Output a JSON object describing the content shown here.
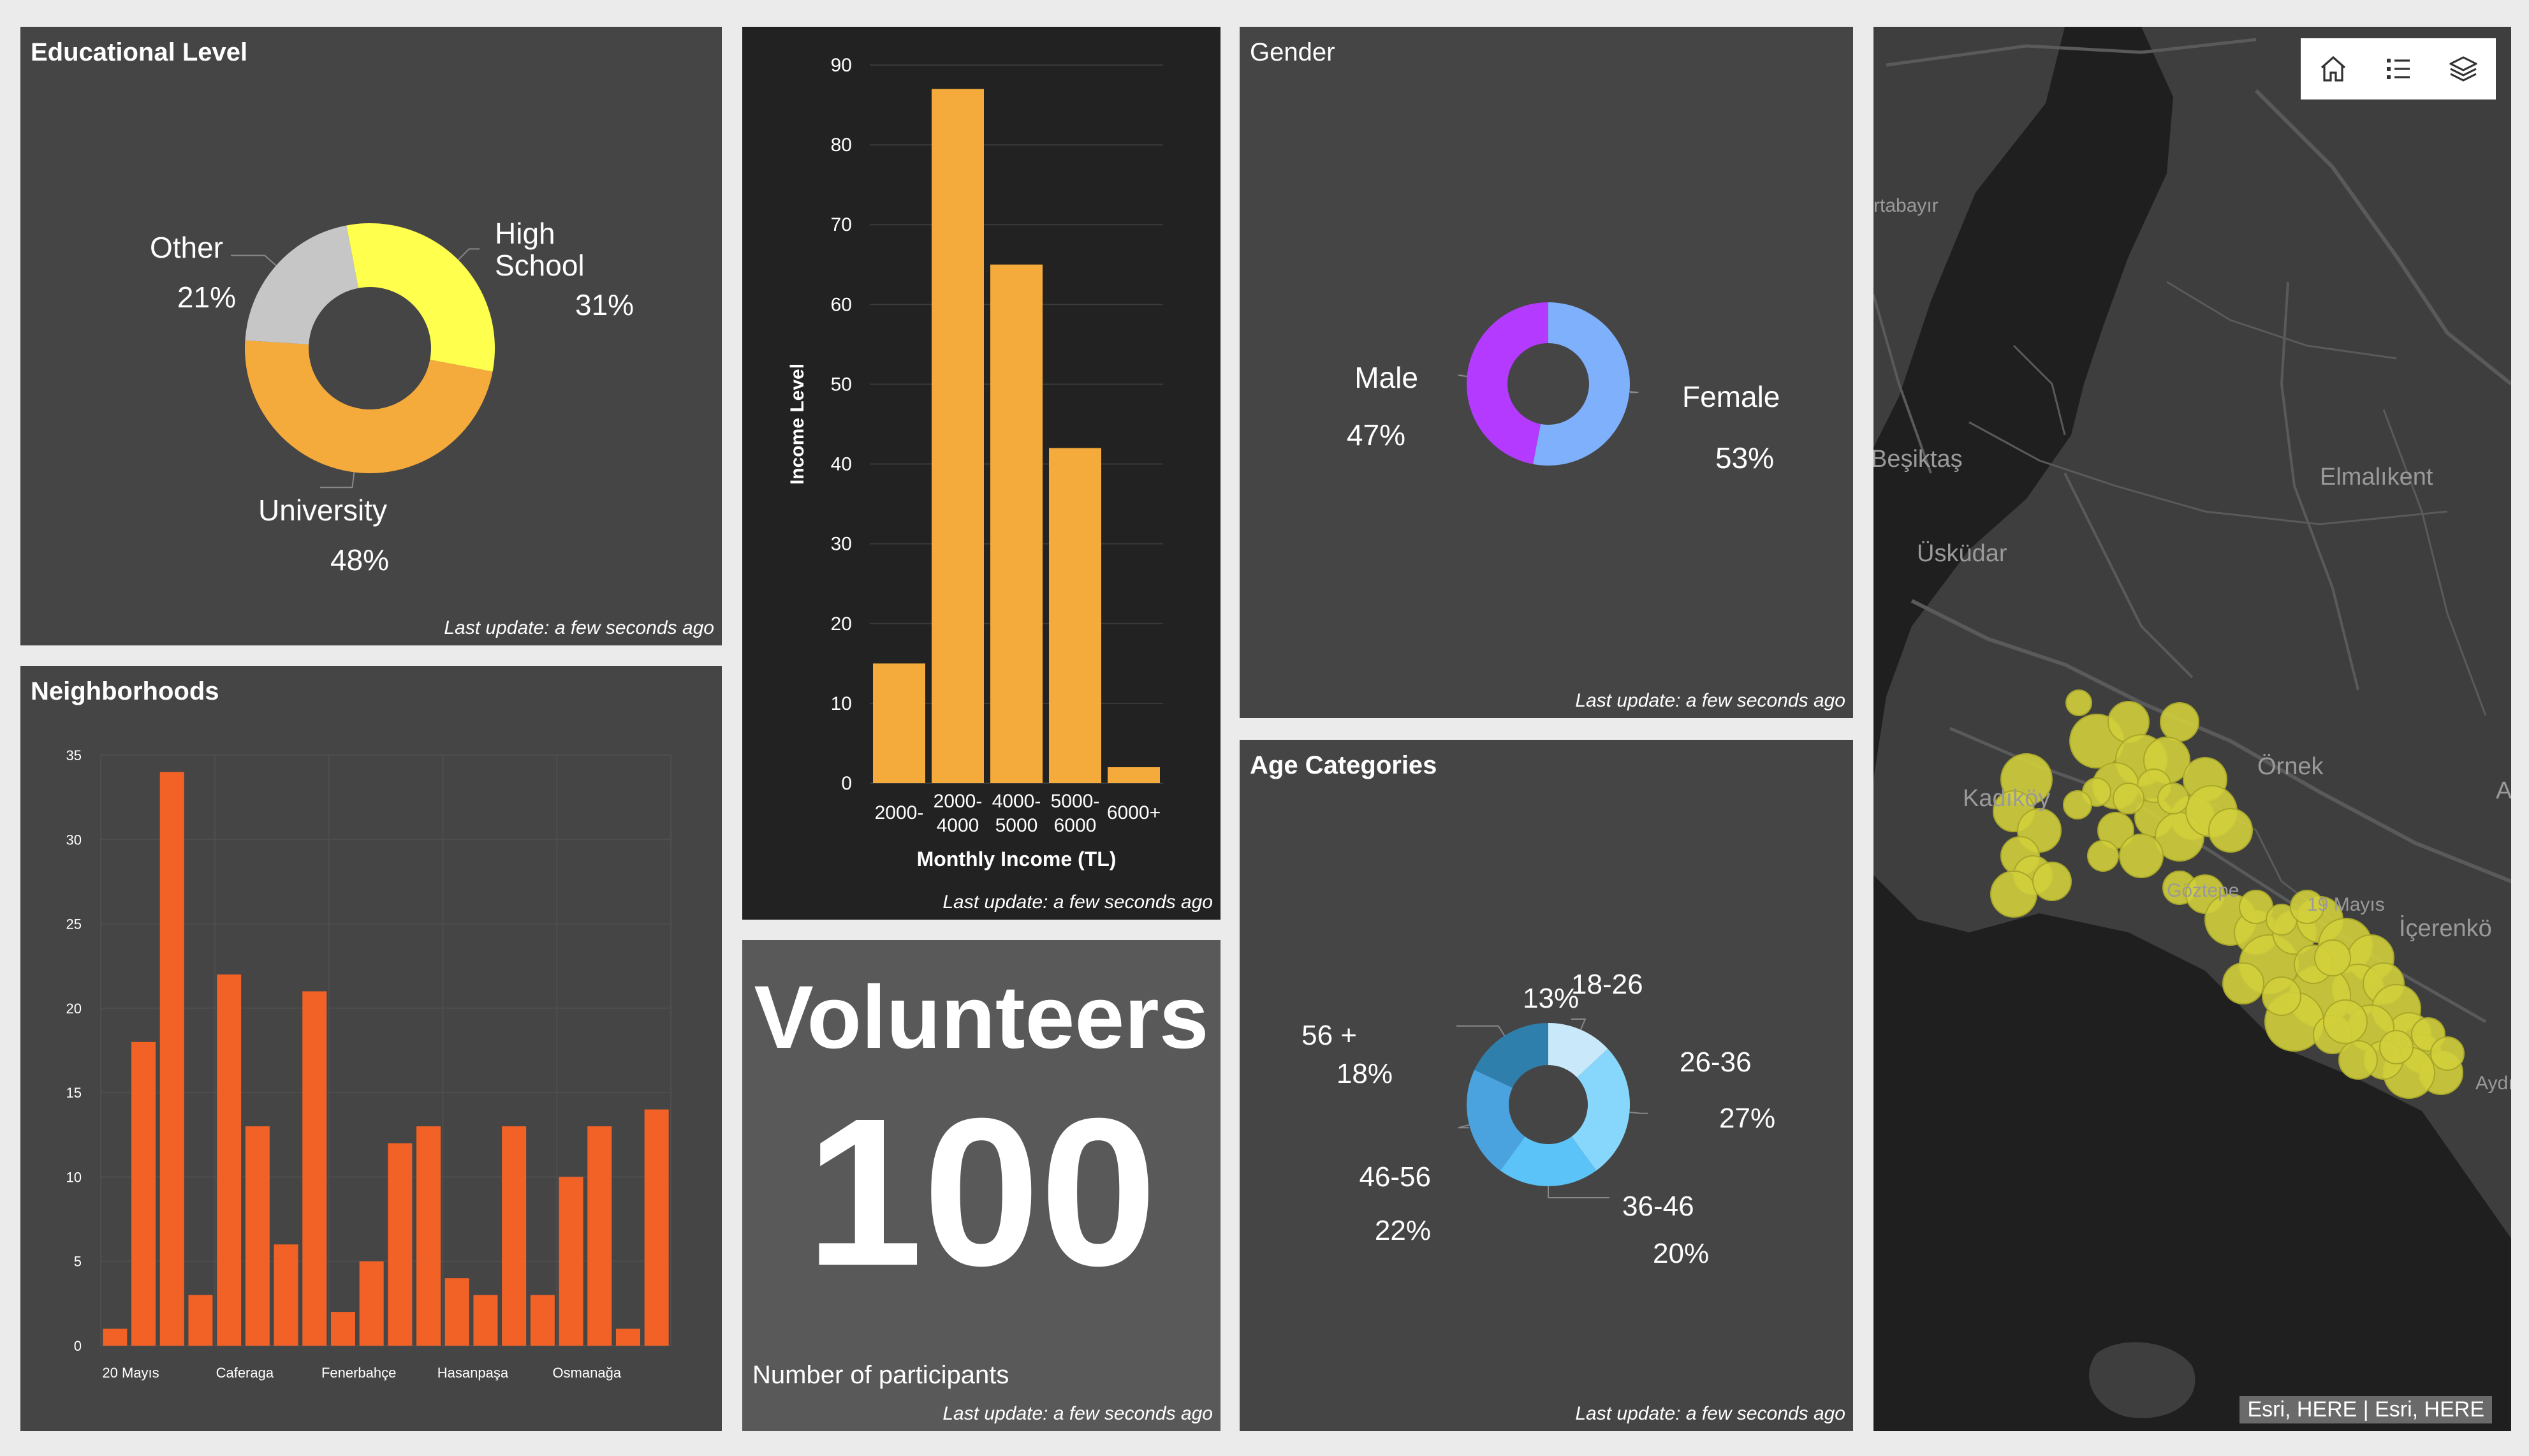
{
  "educational": {
    "title": "Educational Level",
    "footer": "Last update: a few seconds ago",
    "slices": [
      {
        "label": "High School",
        "label_lines": [
          "High",
          "School"
        ],
        "pct_text": "31%",
        "value": 31,
        "color": "#ffff4d"
      },
      {
        "label": "University",
        "label_lines": [
          "University"
        ],
        "pct_text": "48%",
        "value": 48,
        "color": "#f5ab3c"
      },
      {
        "label": "Other",
        "label_lines": [
          "Other"
        ],
        "pct_text": "21%",
        "value": 21,
        "color": "#c6c6c6"
      }
    ]
  },
  "income": {
    "footer": "Last update: a few seconds ago",
    "chart_data": {
      "type": "bar",
      "categories": [
        "2000-",
        "2000-4000",
        "4000-5000",
        "5000-6000",
        "6000+"
      ],
      "category_lines": [
        [
          "2000-"
        ],
        [
          "2000-",
          "4000"
        ],
        [
          "4000-",
          "5000"
        ],
        [
          "5000-",
          "6000"
        ],
        [
          "6000+"
        ]
      ],
      "values": [
        15,
        87,
        65,
        42,
        2
      ],
      "xlabel": "Monthly Income (TL)",
      "ylabel": "Income Level",
      "ylim": [
        0,
        90
      ],
      "yticks": [
        0,
        10,
        20,
        30,
        40,
        50,
        60,
        70,
        80,
        90
      ],
      "color": "#f5ab3c"
    }
  },
  "gender": {
    "title": "Gender",
    "footer": "Last update: a few seconds ago",
    "slices": [
      {
        "label": "Female",
        "pct_text": "53%",
        "value": 53,
        "color": "#7eb0fb"
      },
      {
        "label": "Male",
        "pct_text": "47%",
        "value": 47,
        "color": "#b43aff"
      }
    ]
  },
  "neighborhoods": {
    "title": "Neighborhoods",
    "chart_data": {
      "type": "bar",
      "values": [
        1,
        18,
        34,
        3,
        22,
        13,
        6,
        21,
        2,
        5,
        12,
        13,
        4,
        3,
        13,
        3,
        10,
        13,
        1,
        14
      ],
      "xtick_labels": [
        {
          "index": 1,
          "label": "20 Mayıs"
        },
        {
          "index": 5,
          "label": "Caferaga"
        },
        {
          "index": 9,
          "label": "Fenerbahçe"
        },
        {
          "index": 13,
          "label": "Hasanpaşa"
        },
        {
          "index": 17,
          "label": "Osmanağa"
        }
      ],
      "ylim": [
        0,
        35
      ],
      "yticks": [
        0,
        5,
        10,
        15,
        20,
        25,
        30,
        35
      ],
      "color": "#f26227"
    }
  },
  "volunteers": {
    "title": "Volunteers",
    "number": "100",
    "caption": "Number of participants",
    "footer": "Last update: a few seconds ago"
  },
  "age": {
    "title": "Age Categories",
    "footer": "Last update: a few seconds ago",
    "slices": [
      {
        "label": "18-26",
        "pct_text": "13%",
        "value": 13,
        "color": "#c9e9fb"
      },
      {
        "label": "26-36",
        "pct_text": "27%",
        "value": 27,
        "color": "#86d7fb"
      },
      {
        "label": "36-46",
        "pct_text": "20%",
        "value": 20,
        "color": "#5bc3f8"
      },
      {
        "label": "46-56",
        "pct_text": "22%",
        "value": 22,
        "color": "#4aa3df"
      },
      {
        "label": "56 +",
        "pct_text": "18%",
        "value": 18,
        "color": "#2f7fad"
      }
    ]
  },
  "map": {
    "places": [
      "rtabayır",
      "Beşiktaş",
      "Üsküdar",
      "Elmalıkent",
      "Kadıköy",
      "Örnek",
      "Göztepe",
      "19 Mayıs",
      "İçerenkö",
      "Aydı",
      "A"
    ],
    "attribution": "Esri, HERE | Esri, HERE",
    "tools": [
      "home-icon",
      "legend-icon",
      "layers-icon"
    ],
    "colors": {
      "land": "#3e3e3e",
      "water": "#1f1f1f",
      "road": "#5a5a5a",
      "dot": "#d1cf3b"
    }
  }
}
